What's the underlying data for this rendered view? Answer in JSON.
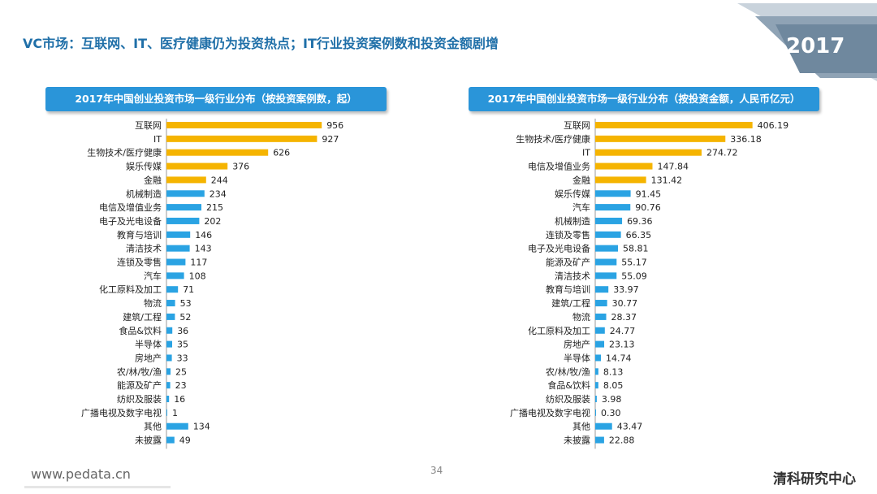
{
  "header": {
    "title": "VC市场：互联网、IT、医疗健康仍为投资热点；IT行业投资案例数和投资金额剧增",
    "year_badge": "2017"
  },
  "footer": {
    "website": "www.pedata.cn",
    "page_number": "34",
    "brand": "清科研究中心"
  },
  "colors": {
    "highlight_bar": "#f5b400",
    "normal_bar": "#2aa3e3",
    "panel_title_bg": "#2a95d9",
    "title_text": "#1f6fa8"
  },
  "chart_data": [
    {
      "type": "bar",
      "orientation": "horizontal",
      "title": "2017年中国创业投资市场一级行业分布（按投资案例数，起）",
      "highlight_top": 5,
      "categories": [
        "互联网",
        "IT",
        "生物技术/医疗健康",
        "娱乐传媒",
        "金融",
        "机械制造",
        "电信及增值业务",
        "电子及光电设备",
        "教育与培训",
        "清洁技术",
        "连锁及零售",
        "汽车",
        "化工原料及加工",
        "物流",
        "建筑/工程",
        "食品&饮料",
        "半导体",
        "房地产",
        "农/林/牧/渔",
        "能源及矿产",
        "纺织及服装",
        "广播电视及数字电视",
        "其他",
        "未披露"
      ],
      "values": [
        956,
        927,
        626,
        376,
        244,
        234,
        215,
        202,
        146,
        143,
        117,
        108,
        71,
        53,
        52,
        36,
        35,
        33,
        25,
        23,
        16,
        1,
        134,
        49
      ],
      "value_labels": [
        "956",
        "927",
        "626",
        "376",
        "244",
        "234",
        "215",
        "202",
        "146",
        "143",
        "117",
        "108",
        "71",
        "53",
        "52",
        "36",
        "35",
        "33",
        "25",
        "23",
        "16",
        "1",
        "134",
        "49"
      ],
      "xlim": [
        0,
        1000
      ]
    },
    {
      "type": "bar",
      "orientation": "horizontal",
      "title": "2017年中国创业投资市场一级行业分布（按投资金额，人民币亿元）",
      "highlight_top": 5,
      "categories": [
        "互联网",
        "生物技术/医疗健康",
        "IT",
        "电信及增值业务",
        "金融",
        "娱乐传媒",
        "汽车",
        "机械制造",
        "连锁及零售",
        "电子及光电设备",
        "能源及矿产",
        "清洁技术",
        "教育与培训",
        "建筑/工程",
        "物流",
        "化工原料及加工",
        "房地产",
        "半导体",
        "农/林/牧/渔",
        "食品&饮料",
        "纺织及服装",
        "广播电视及数字电视",
        "其他",
        "未披露"
      ],
      "values": [
        406.19,
        336.18,
        274.72,
        147.84,
        131.42,
        91.45,
        90.76,
        69.36,
        66.35,
        58.81,
        55.17,
        55.09,
        33.97,
        30.77,
        28.37,
        24.77,
        23.13,
        14.74,
        8.13,
        8.05,
        3.98,
        0.3,
        43.47,
        22.88
      ],
      "value_labels": [
        "406.19",
        "336.18",
        "274.72",
        "147.84",
        "131.42",
        "91.45",
        "90.76",
        "69.36",
        "66.35",
        "58.81",
        "55.17",
        "55.09",
        "33.97",
        "30.77",
        "28.37",
        "24.77",
        "23.13",
        "14.74",
        "8.13",
        "8.05",
        "3.98",
        "0.30",
        "43.47",
        "22.88"
      ],
      "xlim": [
        0,
        430
      ]
    }
  ]
}
